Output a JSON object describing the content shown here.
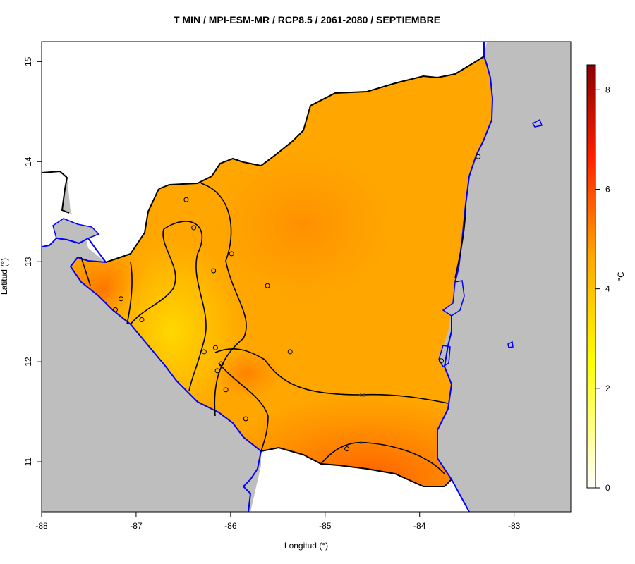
{
  "title": "T MIN / MPI-ESM-MR / RCP8.5 / 2061-2080 / SEPTIEMBRE",
  "colors": {
    "ocean": "#bebebe",
    "land_outside": "#ffffff",
    "coast": "#0000ff",
    "border": "#000000",
    "field_low": "#ffd400",
    "field_mid": "#ffa800",
    "field_high": "#ff5a00"
  },
  "chart_data": {
    "type": "heatmap",
    "title": "T MIN / MPI-ESM-MR / RCP8.5 / 2061-2080 / SEPTIEMBRE",
    "xlabel": "Longitud (°)",
    "ylabel": "Latitud (°)",
    "xlim": [
      -88,
      -82.4
    ],
    "ylim": [
      10.5,
      15.2
    ],
    "x_ticks": [
      -88,
      -87,
      -86,
      -85,
      -84,
      -83
    ],
    "y_ticks": [
      11,
      12,
      13,
      14,
      15
    ],
    "x_tick_labels": [
      "-88",
      "-87",
      "-86",
      "-85",
      "-84",
      "-83"
    ],
    "y_tick_labels": [
      "11",
      "12",
      "13",
      "14",
      "15"
    ],
    "contour_labels": [
      "4.5",
      "5"
    ],
    "colorbar": {
      "label": "°C",
      "range": [
        0,
        8.5
      ],
      "ticks": [
        0,
        2,
        4,
        6,
        8
      ],
      "tick_labels": [
        "0",
        "2",
        "4",
        "6",
        "8"
      ],
      "stops": [
        "#ffffff",
        "#ffff00",
        "#ffa500",
        "#ff0000",
        "#8b0000"
      ]
    },
    "stations": [
      {
        "lon": -86.47,
        "lat": 13.62
      },
      {
        "lon": -86.39,
        "lat": 13.34
      },
      {
        "lon": -85.99,
        "lat": 13.08
      },
      {
        "lon": -86.18,
        "lat": 12.91
      },
      {
        "lon": -85.61,
        "lat": 12.76
      },
      {
        "lon": -87.16,
        "lat": 12.63
      },
      {
        "lon": -87.22,
        "lat": 12.52
      },
      {
        "lon": -86.94,
        "lat": 12.42
      },
      {
        "lon": -86.28,
        "lat": 12.1
      },
      {
        "lon": -86.16,
        "lat": 12.14
      },
      {
        "lon": -85.37,
        "lat": 12.1
      },
      {
        "lon": -86.1,
        "lat": 11.98
      },
      {
        "lon": -86.14,
        "lat": 11.91
      },
      {
        "lon": -86.05,
        "lat": 11.72
      },
      {
        "lon": -85.84,
        "lat": 11.43
      },
      {
        "lon": -84.77,
        "lat": 11.13
      },
      {
        "lon": -83.77,
        "lat": 12.01
      },
      {
        "lon": -83.38,
        "lat": 14.05
      }
    ]
  }
}
